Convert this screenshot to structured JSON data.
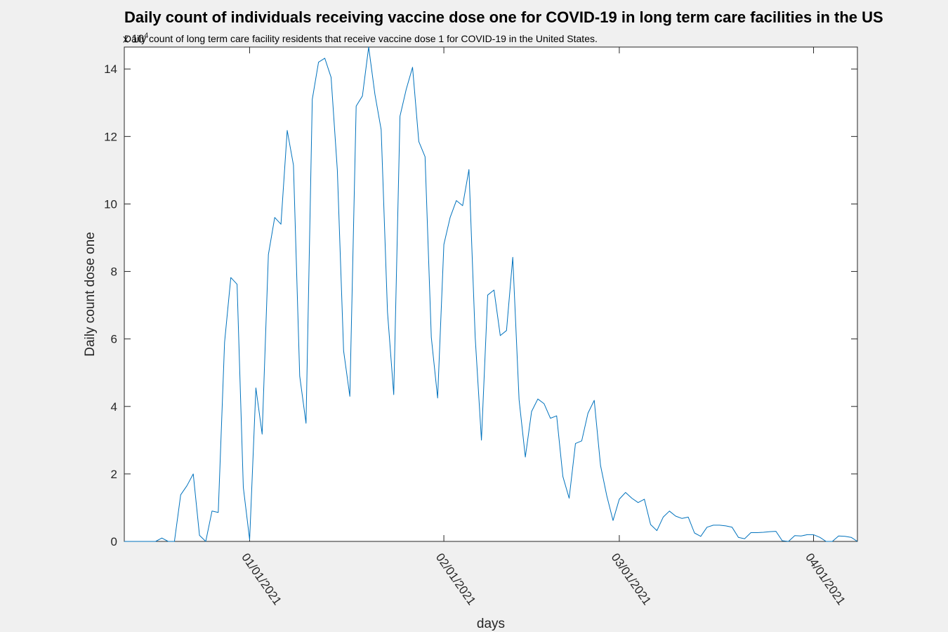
{
  "chart_data": {
    "type": "line",
    "title": "Daily count of individuals receiving vaccine dose one for COVID-19 in long term care facilities in the US",
    "subtitle": "Daily count of long term care facility residents that receive vaccine dose 1 for COVID-19 in the United States.",
    "xlabel": "days",
    "ylabel": "Daily count dose one",
    "y_exponent": "x 10",
    "y_exponent_power": "4",
    "xlim": [
      "2020-12-12",
      "2021-04-08"
    ],
    "ylim": [
      0,
      14.65
    ],
    "y_ticks": [
      0,
      2,
      4,
      6,
      8,
      10,
      12,
      14
    ],
    "y_tick_labels": [
      "0",
      "2",
      "4",
      "6",
      "8",
      "10",
      "12",
      "14"
    ],
    "x_ticks": [
      "2021-01-01",
      "2021-02-01",
      "2021-03-01",
      "2021-04-01"
    ],
    "x_tick_labels": [
      "01/01/2021",
      "02/01/2021",
      "03/01/2021",
      "04/01/2021"
    ],
    "grid": false,
    "line_color": "#0072bd",
    "series": [
      {
        "start_date": "2020-12-12",
        "values": [
          0,
          0,
          0,
          0,
          0,
          0,
          0.1,
          0,
          0,
          1.38,
          1.65,
          2.0,
          0.18,
          0,
          0.9,
          0.86,
          5.9,
          7.82,
          7.62,
          1.6,
          0.05,
          4.55,
          3.18,
          8.5,
          9.6,
          9.4,
          12.18,
          11.15,
          4.9,
          3.5,
          13.1,
          14.2,
          14.32,
          13.75,
          11.0,
          5.65,
          4.3,
          12.9,
          13.2,
          14.65,
          13.25,
          12.2,
          6.8,
          4.35,
          12.6,
          13.4,
          14.05,
          11.85,
          11.4,
          6.05,
          4.25,
          8.8,
          9.6,
          10.1,
          9.95,
          11.02,
          6.05,
          3.0,
          7.3,
          7.45,
          6.1,
          6.25,
          8.42,
          4.2,
          2.5,
          3.85,
          4.22,
          4.08,
          3.65,
          3.72,
          1.92,
          1.28,
          2.9,
          2.98,
          3.8,
          4.18,
          2.25,
          1.35,
          0.62,
          1.25,
          1.45,
          1.28,
          1.15,
          1.25,
          0.5,
          0.32,
          0.72,
          0.9,
          0.75,
          0.68,
          0.72,
          0.25,
          0.15,
          0.42,
          0.48,
          0.48,
          0.46,
          0.42,
          0.12,
          0.08,
          0.26,
          0.26,
          0.27,
          0.29,
          0.3,
          0.02,
          0,
          0.17,
          0.16,
          0.2,
          0.2,
          0.12,
          0,
          0,
          0.16,
          0.15,
          0.12,
          0
        ]
      }
    ]
  }
}
